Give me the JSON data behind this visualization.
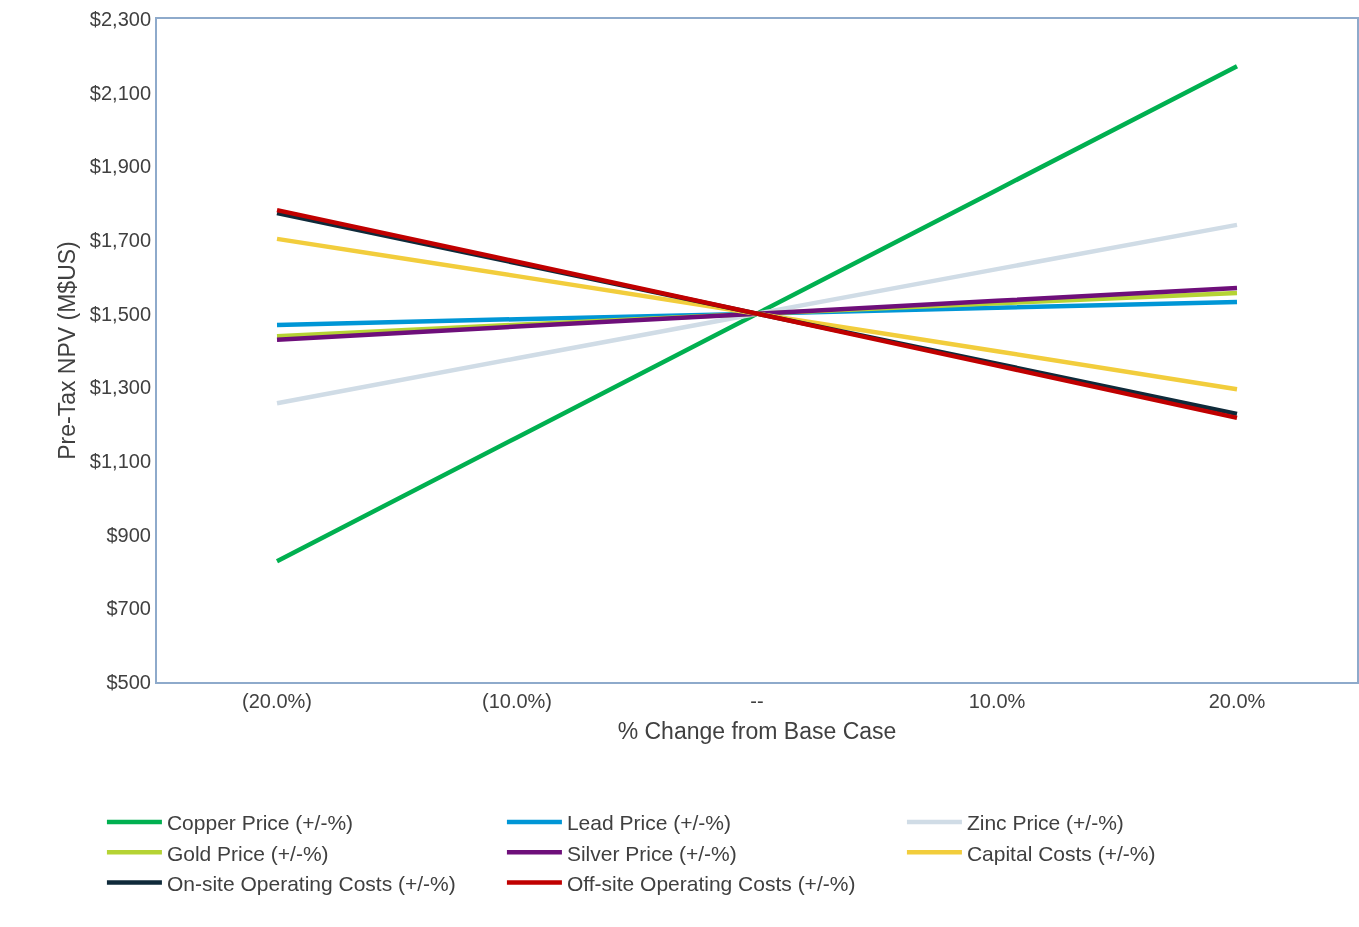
{
  "chart_data": {
    "type": "line",
    "xlabel": "% Change from Base Case",
    "ylabel": "Pre-Tax NPV (M$US)",
    "categories": [
      "(20.0%)",
      "(10.0%)",
      "--",
      "10.0%",
      "20.0%"
    ],
    "ylim": [
      500,
      2300
    ],
    "yticks": [
      {
        "value": 500,
        "label": "$500"
      },
      {
        "value": 700,
        "label": "$700"
      },
      {
        "value": 900,
        "label": "$900"
      },
      {
        "value": 1100,
        "label": "$1,100"
      },
      {
        "value": 1300,
        "label": "$1,300"
      },
      {
        "value": 1500,
        "label": "$1,500"
      },
      {
        "value": 1700,
        "label": "$1,700"
      },
      {
        "value": 1900,
        "label": "$1,900"
      },
      {
        "value": 2100,
        "label": "$2,100"
      },
      {
        "value": 2300,
        "label": "$2,300"
      }
    ],
    "grid": false,
    "legend": "bottom",
    "marker": "none",
    "line_style": "solid",
    "series": [
      {
        "name": "Copper Price (+/-%)",
        "color": "#00b050",
        "values": [
          828,
          1164,
          1500,
          1836,
          2172
        ]
      },
      {
        "name": "Lead Price (+/-%)",
        "color": "#0096d6",
        "values": [
          1469,
          1485,
          1500,
          1516,
          1532
        ]
      },
      {
        "name": "Zinc Price (+/-%)",
        "color": "#d0dce6",
        "values": [
          1257,
          1379,
          1500,
          1621,
          1741
        ]
      },
      {
        "name": "Gold Price (+/-%)",
        "color": "#b5d334",
        "values": [
          1439,
          1470,
          1500,
          1528,
          1556
        ]
      },
      {
        "name": "Silver Price (+/-%)",
        "color": "#6e0f7a",
        "values": [
          1429,
          1465,
          1500,
          1535,
          1570
        ]
      },
      {
        "name": "Capital Costs (+/-%)",
        "color": "#f2cd3c",
        "values": [
          1703,
          1602,
          1500,
          1398,
          1295
        ]
      },
      {
        "name": "On-site Operating Costs (+/-%)",
        "color": "#0f2a3a",
        "values": [
          1773,
          1637,
          1500,
          1364,
          1228
        ]
      },
      {
        "name": "Off-site Operating Costs (+/-%)",
        "color": "#c00000",
        "values": [
          1781,
          1641,
          1500,
          1359,
          1217
        ]
      }
    ]
  }
}
